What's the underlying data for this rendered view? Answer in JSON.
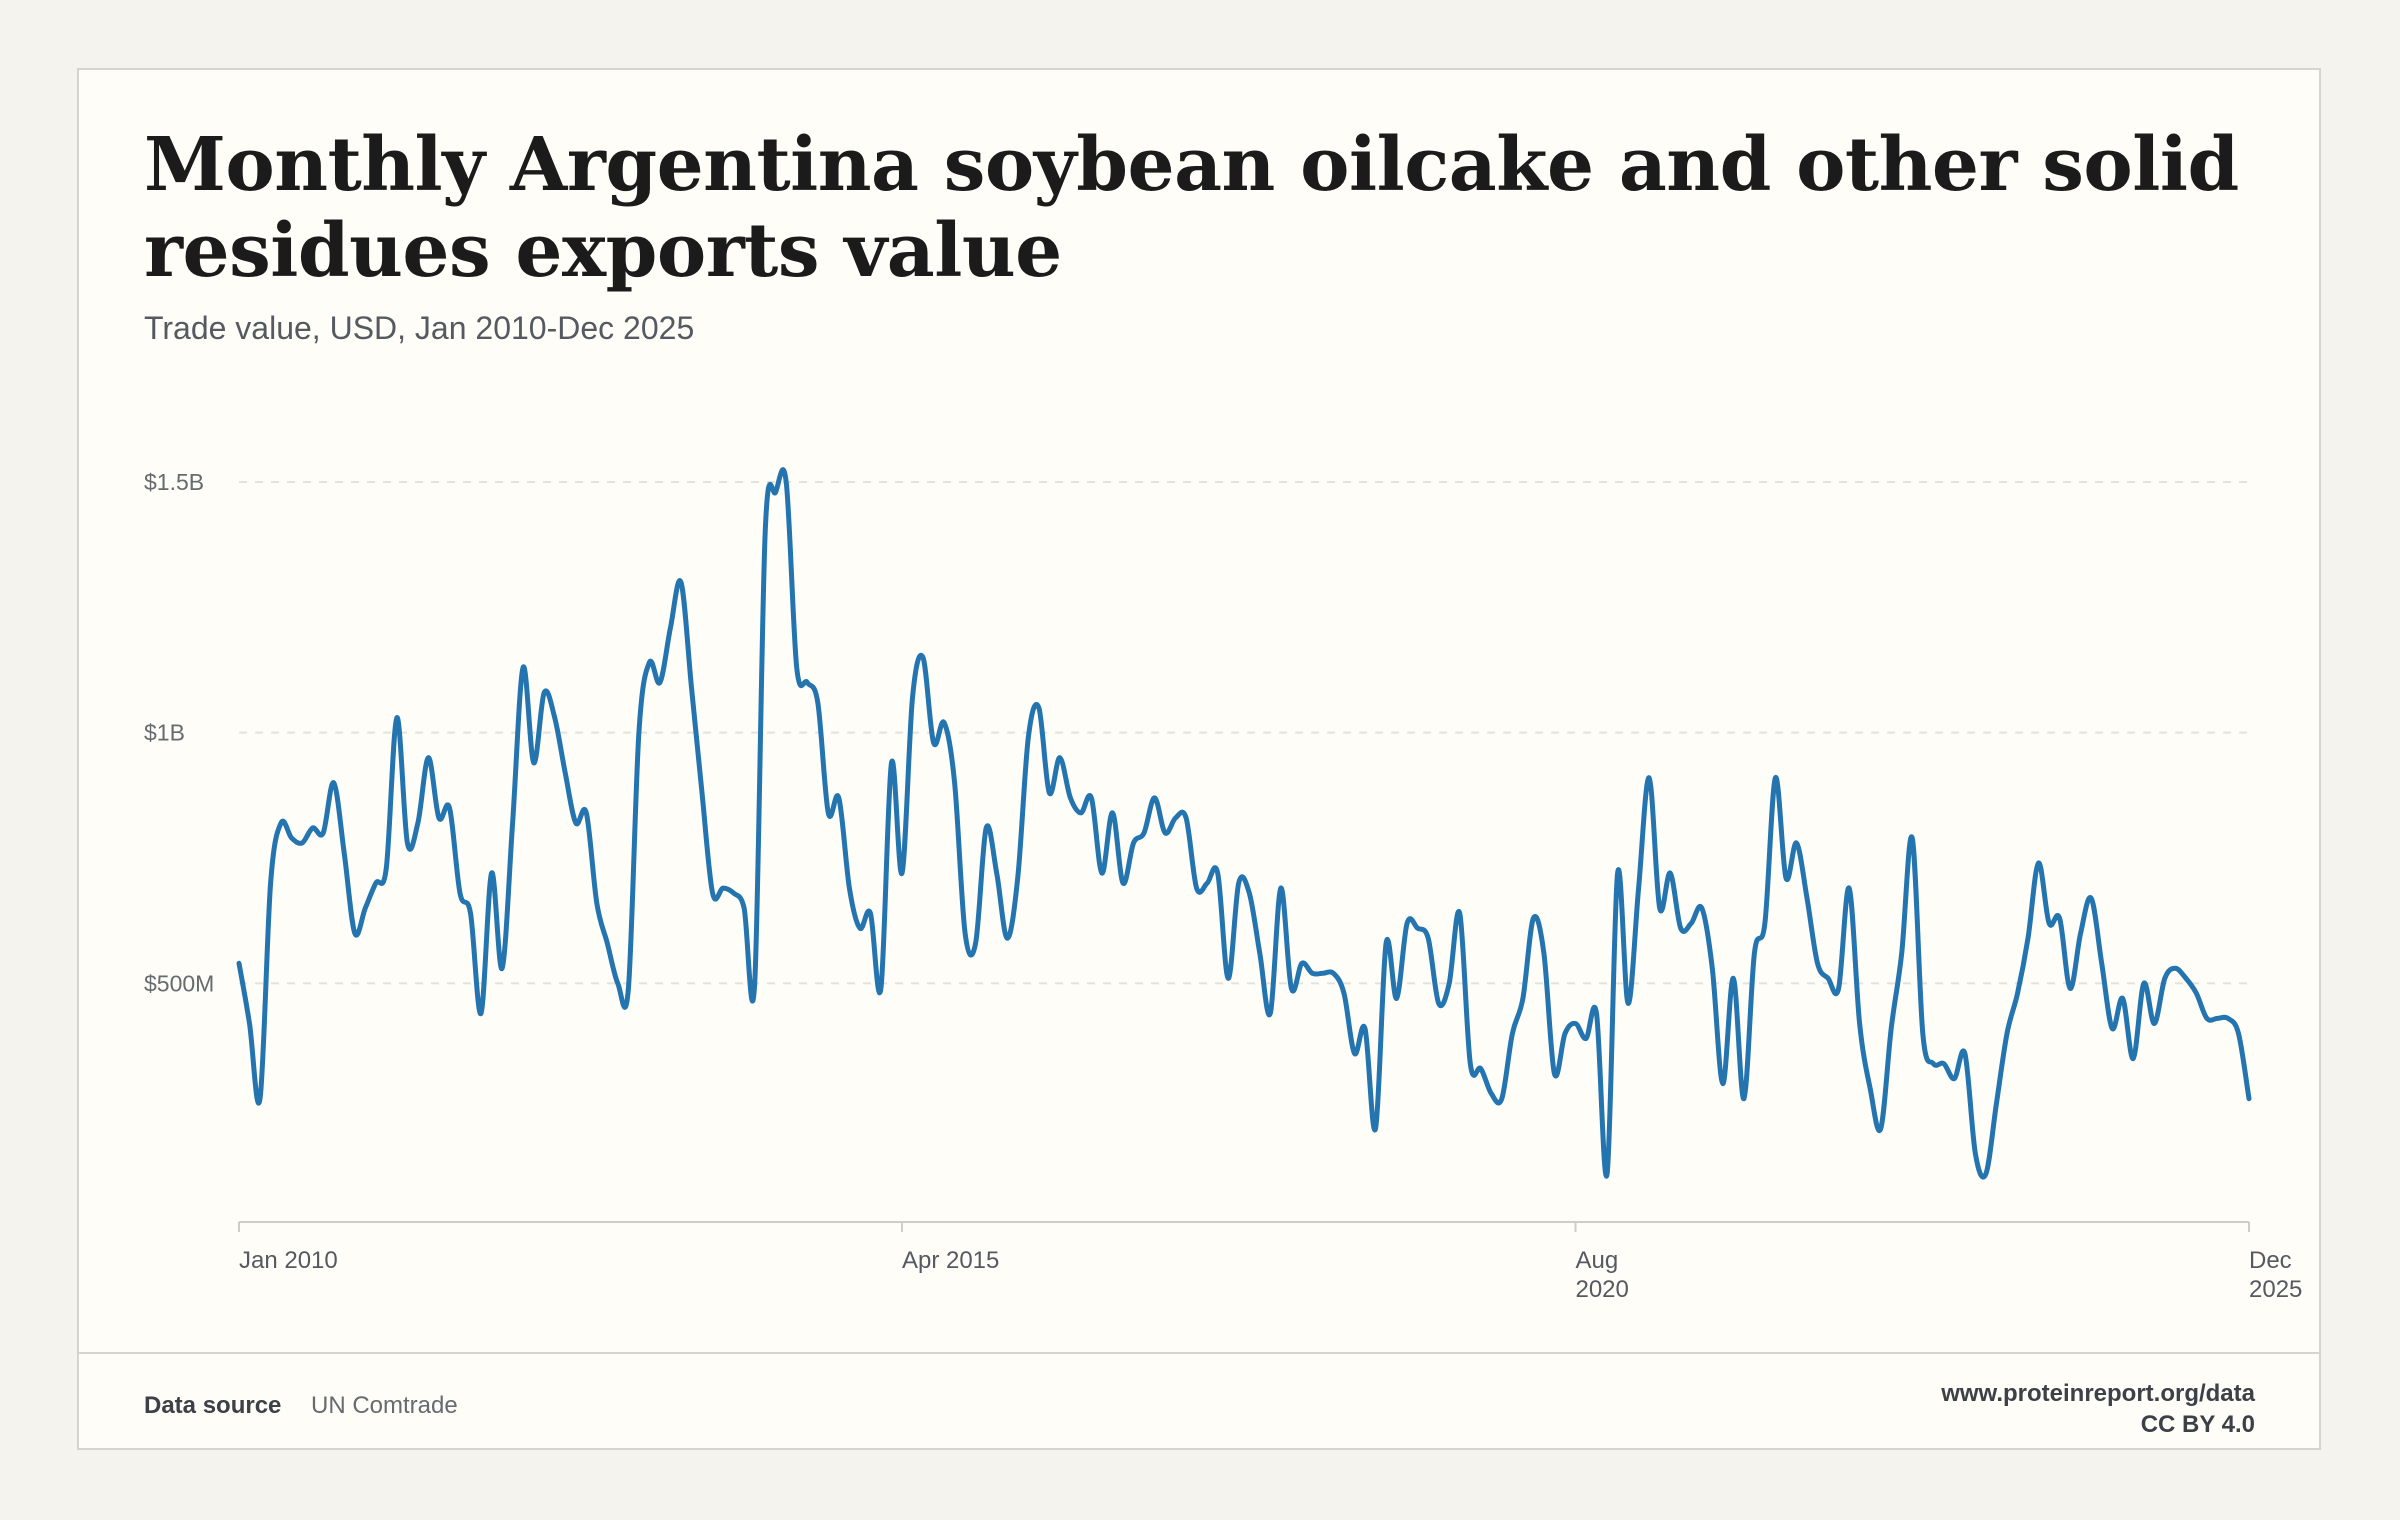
{
  "header": {
    "title": "Monthly Argentina soybean oilcake and other solid residues exports value",
    "subtitle": "Trade value, USD, Jan 2010-Dec 2025"
  },
  "footer": {
    "source_label": "Data source",
    "source_value": "UN Comtrade",
    "site": "www.proteinreport.org/data",
    "license": "CC BY 4.0"
  },
  "colors": {
    "line": "#2474b0",
    "grid": "#e4e2dc",
    "axis": "#cfcdc8"
  },
  "chart_data": {
    "type": "line",
    "title": "Monthly Argentina soybean oilcake and other solid residues exports value",
    "subtitle": "Trade value, USD, Jan 2010-Dec 2025",
    "xlabel": "",
    "ylabel": "",
    "x_start": "2010-01",
    "x_end": "2025-12",
    "xticks": [
      {
        "date": "2010-01",
        "lines": [
          "Jan 2010"
        ]
      },
      {
        "date": "2015-04",
        "lines": [
          "Apr 2015"
        ]
      },
      {
        "date": "2020-08",
        "lines": [
          "Aug",
          "2020"
        ]
      },
      {
        "date": "2025-12",
        "lines": [
          "Dec",
          "2025"
        ]
      }
    ],
    "yticks": [
      {
        "value": 500000000,
        "label": "$500M"
      },
      {
        "value": 1000000000,
        "label": "$1B"
      },
      {
        "value": 1500000000,
        "label": "$1.5B"
      }
    ],
    "ylim": [
      20000000,
      1500000000
    ],
    "grid": true,
    "series": [
      {
        "name": "",
        "unit": "USD",
        "values": [
          540000000,
          420000000,
          270000000,
          700000000,
          820000000,
          790000000,
          780000000,
          810000000,
          800000000,
          900000000,
          760000000,
          600000000,
          650000000,
          700000000,
          730000000,
          1030000000,
          780000000,
          820000000,
          950000000,
          830000000,
          850000000,
          680000000,
          640000000,
          440000000,
          720000000,
          530000000,
          820000000,
          1130000000,
          940000000,
          1080000000,
          1030000000,
          920000000,
          820000000,
          840000000,
          660000000,
          580000000,
          500000000,
          490000000,
          1000000000,
          1140000000,
          1100000000,
          1210000000,
          1300000000,
          1090000000,
          880000000,
          680000000,
          690000000,
          680000000,
          650000000,
          500000000,
          1400000000,
          1480000000,
          1500000000,
          1130000000,
          1100000000,
          1060000000,
          840000000,
          870000000,
          690000000,
          610000000,
          640000000,
          490000000,
          940000000,
          720000000,
          1070000000,
          1150000000,
          980000000,
          1020000000,
          900000000,
          600000000,
          580000000,
          810000000,
          720000000,
          590000000,
          710000000,
          990000000,
          1050000000,
          880000000,
          950000000,
          870000000,
          840000000,
          870000000,
          720000000,
          840000000,
          700000000,
          780000000,
          800000000,
          870000000,
          800000000,
          830000000,
          830000000,
          690000000,
          700000000,
          720000000,
          510000000,
          700000000,
          680000000,
          560000000,
          440000000,
          690000000,
          490000000,
          540000000,
          520000000,
          520000000,
          520000000,
          480000000,
          360000000,
          410000000,
          210000000,
          580000000,
          470000000,
          620000000,
          610000000,
          590000000,
          460000000,
          500000000,
          640000000,
          340000000,
          330000000,
          280000000,
          270000000,
          400000000,
          470000000,
          630000000,
          560000000,
          320000000,
          400000000,
          420000000,
          390000000,
          440000000,
          120000000,
          720000000,
          460000000,
          690000000,
          910000000,
          650000000,
          720000000,
          610000000,
          620000000,
          650000000,
          530000000,
          300000000,
          510000000,
          270000000,
          560000000,
          620000000,
          910000000,
          710000000,
          780000000,
          670000000,
          540000000,
          510000000,
          490000000,
          690000000,
          420000000,
          290000000,
          210000000,
          410000000,
          560000000,
          790000000,
          400000000,
          340000000,
          340000000,
          310000000,
          360000000,
          160000000,
          120000000,
          260000000,
          400000000,
          480000000,
          590000000,
          740000000,
          620000000,
          630000000,
          490000000,
          600000000,
          670000000,
          540000000,
          410000000,
          470000000,
          350000000,
          500000000,
          420000000,
          510000000,
          530000000,
          510000000,
          480000000,
          430000000,
          430000000,
          430000000,
          400000000,
          270000000
        ]
      }
    ]
  }
}
